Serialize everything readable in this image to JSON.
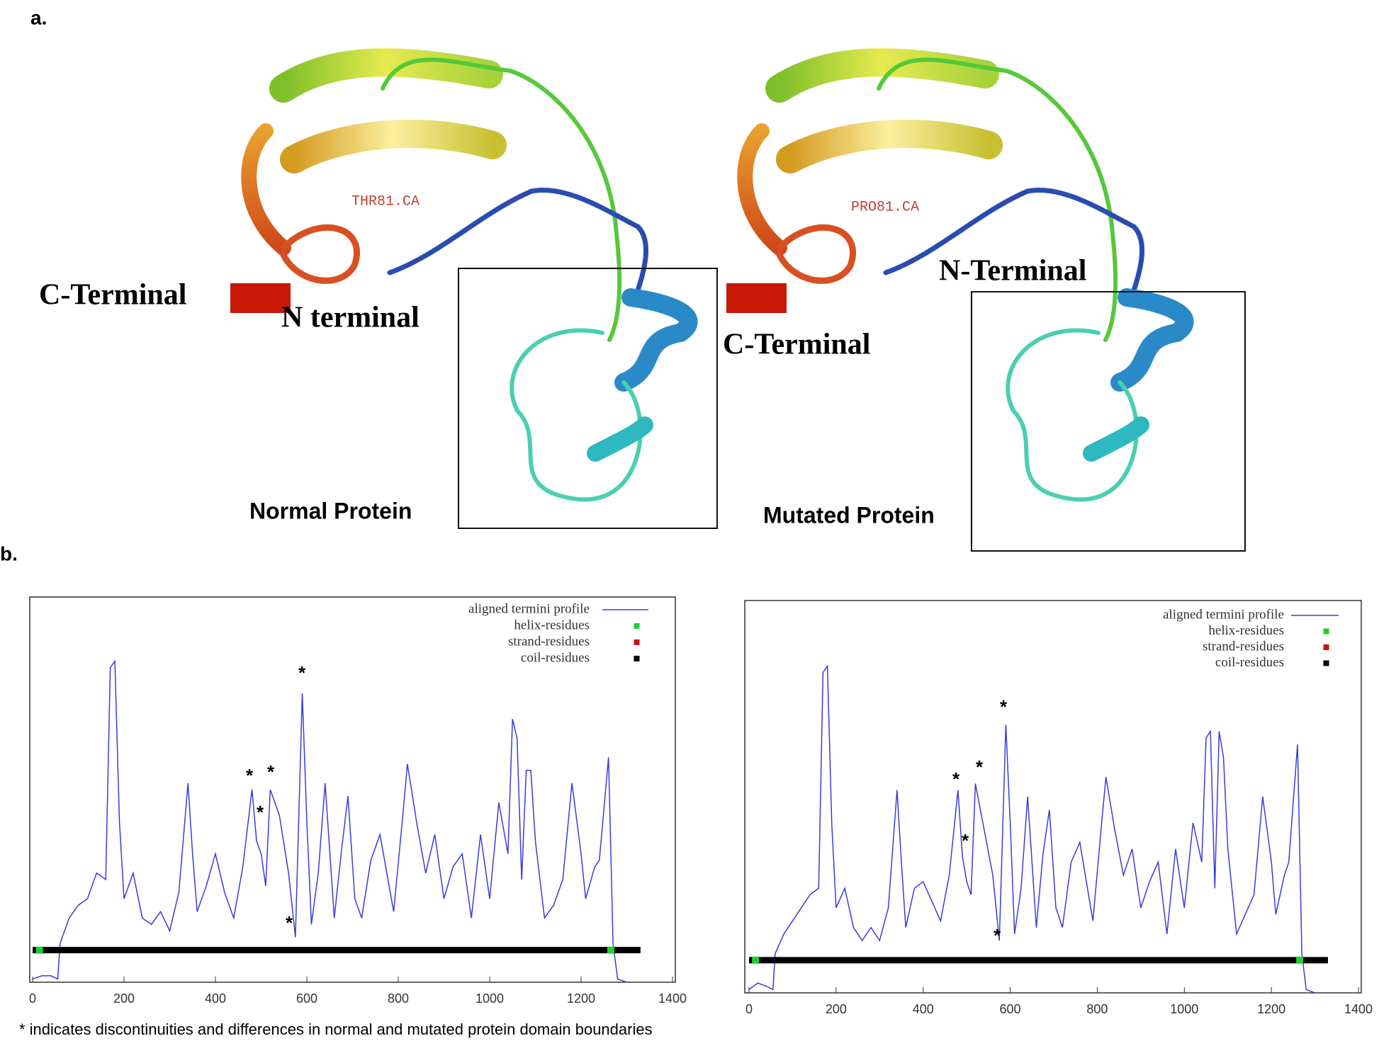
{
  "figure": {
    "panel_a": "a.",
    "panel_b": "b.",
    "normal": {
      "c_terminal": "C-Terminal",
      "n_terminal": "N terminal",
      "residue": "THR81.CA",
      "caption": "Normal Protein"
    },
    "mutated": {
      "c_terminal": "C-Terminal",
      "n_terminal": "N-Terminal",
      "residue": "PRO81.CA",
      "caption": "Mutated Protein"
    },
    "footnote": "* indicates discontinuities and differences in normal and mutated protein domain boundaries"
  },
  "chart_data": [
    {
      "type": "line",
      "xlim": [
        0,
        1400
      ],
      "xticks": [
        0,
        200,
        400,
        600,
        800,
        1000,
        1200,
        1400
      ],
      "ylim": [
        0,
        6
      ],
      "x": [
        0,
        20,
        40,
        55,
        60,
        80,
        100,
        120,
        140,
        160,
        170,
        180,
        190,
        200,
        220,
        240,
        260,
        280,
        300,
        320,
        340,
        350,
        360,
        380,
        400,
        420,
        440,
        460,
        480,
        490,
        500,
        510,
        520,
        540,
        560,
        575,
        590,
        600,
        610,
        625,
        640,
        660,
        675,
        690,
        705,
        720,
        740,
        760,
        780,
        790,
        810,
        820,
        840,
        860,
        880,
        900,
        920,
        940,
        960,
        980,
        1000,
        1020,
        1040,
        1050,
        1060,
        1070,
        1080,
        1090,
        1100,
        1120,
        1140,
        1160,
        1180,
        1200,
        1210,
        1230,
        1240,
        1260,
        1270,
        1280,
        1300
      ],
      "series": [
        {
          "name": "aligned termini profile",
          "color": "#3b3bdc",
          "values": [
            0.05,
            0.1,
            0.1,
            0.05,
            0.6,
            1.0,
            1.2,
            1.3,
            1.7,
            1.6,
            4.9,
            5.0,
            2.5,
            1.3,
            1.7,
            1.0,
            0.9,
            1.1,
            0.8,
            1.4,
            3.1,
            2.0,
            1.1,
            1.5,
            2.0,
            1.4,
            1.0,
            1.8,
            3.0,
            2.2,
            2.0,
            1.5,
            3.0,
            2.6,
            1.7,
            0.7,
            4.5,
            2.5,
            0.9,
            1.7,
            3.1,
            1.0,
            2.0,
            2.9,
            1.3,
            1.0,
            1.9,
            2.3,
            1.5,
            1.1,
            2.6,
            3.4,
            2.5,
            1.7,
            2.3,
            1.3,
            1.8,
            2.0,
            1.0,
            2.3,
            1.3,
            2.8,
            2.0,
            4.1,
            3.8,
            1.6,
            3.3,
            3.3,
            2.2,
            1.0,
            1.2,
            1.6,
            3.1,
            2.0,
            1.3,
            1.8,
            1.9,
            3.5,
            0.6,
            0.05,
            0.0
          ]
        },
        {
          "name": "helix-residues",
          "color": "#22cc33",
          "x": [
            15,
            1265
          ],
          "values": [
            0.5,
            0.5
          ]
        },
        {
          "name": "strand-residues",
          "color": "#cc1111",
          "x": [],
          "values": []
        },
        {
          "name": "coil-residues",
          "color": "#000000",
          "x": [
            0,
            1330
          ],
          "values": [
            0.5,
            0.5
          ]
        }
      ],
      "annotations": [
        "*",
        "*",
        "*",
        "*",
        "*"
      ]
    },
    {
      "type": "line",
      "xlim": [
        0,
        1400
      ],
      "xticks": [
        0,
        200,
        400,
        600,
        800,
        1000,
        1200,
        1400
      ],
      "ylim": [
        0,
        6
      ],
      "x": [
        0,
        20,
        40,
        55,
        60,
        80,
        100,
        120,
        140,
        160,
        170,
        180,
        190,
        200,
        220,
        240,
        260,
        280,
        300,
        320,
        340,
        350,
        360,
        380,
        400,
        420,
        440,
        460,
        480,
        490,
        500,
        510,
        520,
        540,
        560,
        575,
        590,
        600,
        610,
        625,
        640,
        660,
        675,
        690,
        705,
        720,
        740,
        760,
        780,
        790,
        810,
        820,
        840,
        860,
        880,
        900,
        920,
        940,
        960,
        980,
        1000,
        1020,
        1040,
        1050,
        1060,
        1070,
        1080,
        1090,
        1100,
        1120,
        1140,
        1160,
        1180,
        1200,
        1210,
        1230,
        1240,
        1260,
        1270,
        1280,
        1300
      ],
      "series": [
        {
          "name": "aligned termini profile",
          "color": "#3b3bdc",
          "values": [
            0.05,
            0.15,
            0.1,
            0.05,
            0.6,
            0.9,
            1.1,
            1.3,
            1.5,
            1.6,
            4.9,
            5.0,
            2.6,
            1.3,
            1.6,
            1.0,
            0.8,
            1.0,
            0.8,
            1.3,
            3.1,
            2.0,
            1.0,
            1.6,
            1.7,
            1.4,
            1.1,
            1.8,
            3.1,
            2.1,
            1.7,
            1.5,
            3.2,
            2.5,
            1.8,
            0.8,
            4.1,
            2.6,
            0.9,
            1.6,
            3.0,
            1.0,
            2.1,
            2.8,
            1.3,
            1.0,
            2.0,
            2.3,
            1.5,
            1.1,
            2.6,
            3.3,
            2.5,
            1.8,
            2.2,
            1.3,
            1.7,
            2.0,
            0.9,
            2.2,
            1.3,
            2.6,
            2.0,
            3.9,
            4.0,
            1.6,
            4.0,
            3.6,
            2.2,
            0.9,
            1.2,
            1.5,
            3.0,
            2.0,
            1.2,
            1.8,
            2.0,
            3.8,
            0.6,
            0.05,
            0.0
          ]
        },
        {
          "name": "helix-residues",
          "color": "#22cc33",
          "x": [
            15,
            1265
          ],
          "values": [
            0.5,
            0.5
          ]
        },
        {
          "name": "strand-residues",
          "color": "#cc1111",
          "x": [],
          "values": []
        },
        {
          "name": "coil-residues",
          "color": "#000000",
          "x": [
            0,
            1330
          ],
          "values": [
            0.5,
            0.5
          ]
        }
      ],
      "annotations": [
        "*",
        "*",
        "*",
        "*",
        "*"
      ]
    }
  ]
}
